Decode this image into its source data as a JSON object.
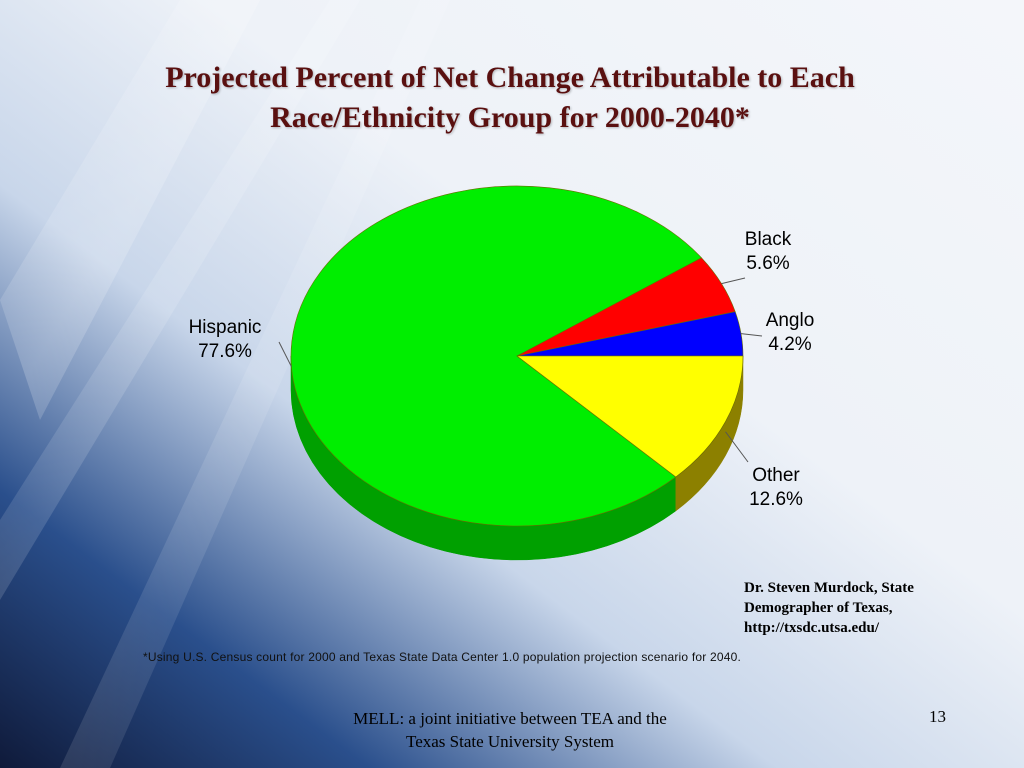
{
  "slide": {
    "title": "Projected Percent of Net Change Attributable to Each Race/Ethnicity Group for 2000-2040*",
    "source_lines": [
      "Dr. Steven Murdock, State",
      "Demographer of Texas,",
      "http://txsdc.utsa.edu/"
    ],
    "footnote": "*Using U.S. Census count for 2000 and Texas State Data Center 1.0 population projection scenario for 2040.",
    "footer_lines": [
      "MELL: a joint initiative between TEA and the",
      "Texas State University System"
    ],
    "slide_number": "13"
  },
  "chart_data": {
    "type": "pie",
    "title": "Projected Percent of Net Change Attributable to Each Race/Ethnicity Group for 2000-2040*",
    "slices": [
      {
        "label": "Hispanic",
        "display": "77.6%",
        "value": 77.6,
        "color": "#00ee00",
        "side": "#00a000"
      },
      {
        "label": "Black",
        "display": "5.6%",
        "value": 5.6,
        "color": "#ff0000",
        "side": "#b00000"
      },
      {
        "label": "Anglo",
        "display": "4.2%",
        "value": 4.2,
        "color": "#0000ff",
        "side": "#0000a0"
      },
      {
        "label": "Other",
        "display": "12.6%",
        "value": 12.6,
        "color": "#ffff00",
        "side": "#8c8000"
      }
    ]
  }
}
